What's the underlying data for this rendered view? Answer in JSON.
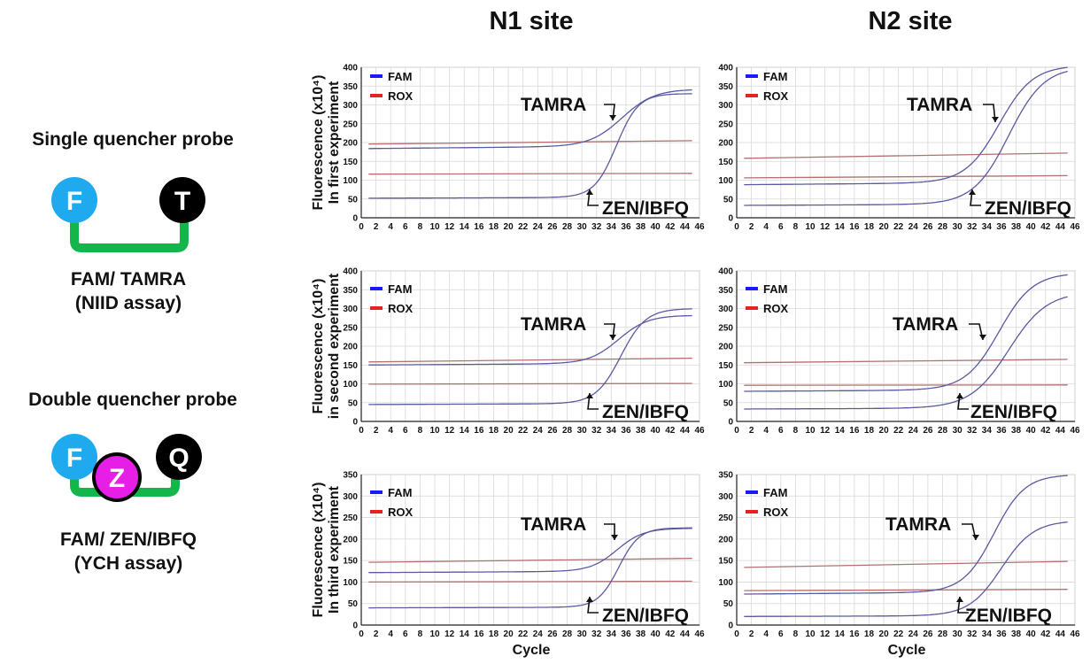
{
  "columns": [
    {
      "label": "N1 site"
    },
    {
      "label": "N2 site"
    }
  ],
  "probes": {
    "single": {
      "title": "Single quencher probe",
      "name_line1": "FAM/ TAMRA",
      "name_line2": "(NIID assay)",
      "circle_left": "F",
      "circle_right": "T"
    },
    "double": {
      "title": "Double quencher probe",
      "name_line1": "FAM/ ZEN/IBFQ",
      "name_line2": "(YCH assay)",
      "circle_left": "F",
      "circle_mid": "Z",
      "circle_right": "Q"
    }
  },
  "colors": {
    "fam": "#1a1aff",
    "rox": "#e52222",
    "fam_curve": "#5a5aa0",
    "rox_curve": "#b27070",
    "probe_f": "#1fa9ee",
    "probe_dark": "#000000",
    "probe_z": "#e61ee6",
    "linker": "#12b64a",
    "grid": "#d8d8d8"
  },
  "row_labels": [
    {
      "line1": "Fluorescence (x10⁴)",
      "line2": "In first experiment"
    },
    {
      "line1": "Fluorescence (x10⁴)",
      "line2": "in second experiment"
    },
    {
      "line1": "Fluorescence (x10⁴)",
      "line2": "In third experiment"
    }
  ],
  "xlabel": "Cycle",
  "chart_data": [
    {
      "type": "line",
      "panel": "N1 site / first experiment",
      "xlim": [
        0,
        46
      ],
      "ylim": [
        0,
        400
      ],
      "x_ticks": [
        0,
        2,
        4,
        6,
        8,
        10,
        12,
        14,
        16,
        18,
        20,
        22,
        24,
        26,
        28,
        30,
        32,
        34,
        36,
        38,
        40,
        42,
        44,
        46
      ],
      "y_ticks": [
        0,
        50,
        100,
        150,
        200,
        250,
        300,
        350,
        400
      ],
      "legend": [
        "FAM",
        "ROX"
      ],
      "annotations": [
        "TAMRA",
        "ZEN/IBFQ"
      ],
      "series": [
        {
          "kind": "rox",
          "values": {
            "x": [
              1,
              45
            ],
            "y": [
              196,
              205
            ]
          }
        },
        {
          "kind": "rox",
          "values": {
            "x": [
              1,
              45
            ],
            "y": [
              116,
              118
            ]
          }
        },
        {
          "kind": "fam",
          "sigmoid": {
            "base0": 184,
            "base1": 192,
            "plateau": 342,
            "mid": 35.5,
            "slope": 2.2
          }
        },
        {
          "kind": "fam",
          "sigmoid": {
            "base0": 52,
            "base1": 55,
            "plateau": 330,
            "mid": 34.7,
            "slope": 1.5
          }
        }
      ]
    },
    {
      "type": "line",
      "panel": "N2 site / first experiment",
      "xlim": [
        0,
        46
      ],
      "ylim": [
        0,
        400
      ],
      "x_ticks": [
        0,
        2,
        4,
        6,
        8,
        10,
        12,
        14,
        16,
        18,
        20,
        22,
        24,
        26,
        28,
        30,
        32,
        34,
        36,
        38,
        40,
        42,
        44,
        46
      ],
      "y_ticks": [
        0,
        50,
        100,
        150,
        200,
        250,
        300,
        350,
        400
      ],
      "legend": [
        "FAM",
        "ROX"
      ],
      "annotations": [
        "TAMRA",
        "ZEN/IBFQ"
      ],
      "series": [
        {
          "kind": "rox",
          "values": {
            "x": [
              1,
              45
            ],
            "y": [
              158,
              172
            ]
          }
        },
        {
          "kind": "rox",
          "values": {
            "x": [
              1,
              45
            ],
            "y": [
              106,
              112
            ]
          }
        },
        {
          "kind": "fam",
          "sigmoid": {
            "base0": 88,
            "base1": 95,
            "plateau": 405,
            "mid": 35.7,
            "slope": 2.3
          }
        },
        {
          "kind": "fam",
          "sigmoid": {
            "base0": 33,
            "base1": 37,
            "plateau": 402,
            "mid": 37.0,
            "slope": 2.4
          }
        }
      ]
    },
    {
      "type": "line",
      "panel": "N1 site / second experiment",
      "xlim": [
        0,
        46
      ],
      "ylim": [
        0,
        400
      ],
      "x_ticks": [
        0,
        2,
        4,
        6,
        8,
        10,
        12,
        14,
        16,
        18,
        20,
        22,
        24,
        26,
        28,
        30,
        32,
        34,
        36,
        38,
        40,
        42,
        44,
        46
      ],
      "y_ticks": [
        0,
        50,
        100,
        150,
        200,
        250,
        300,
        350,
        400
      ],
      "legend": [
        "FAM",
        "ROX"
      ],
      "annotations": [
        "TAMRA",
        "ZEN/IBFQ"
      ],
      "series": [
        {
          "kind": "rox",
          "values": {
            "x": [
              1,
              45
            ],
            "y": [
              158,
              168
            ]
          }
        },
        {
          "kind": "rox",
          "values": {
            "x": [
              1,
              45
            ],
            "y": [
              99,
              101
            ]
          }
        },
        {
          "kind": "fam",
          "sigmoid": {
            "base0": 150,
            "base1": 155,
            "plateau": 282,
            "mid": 35.0,
            "slope": 2.0
          }
        },
        {
          "kind": "fam",
          "sigmoid": {
            "base0": 45,
            "base1": 48,
            "plateau": 300,
            "mid": 35.3,
            "slope": 1.7
          }
        }
      ]
    },
    {
      "type": "line",
      "panel": "N2 site / second experiment",
      "xlim": [
        0,
        46
      ],
      "ylim": [
        0,
        400
      ],
      "x_ticks": [
        0,
        2,
        4,
        6,
        8,
        10,
        12,
        14,
        16,
        18,
        20,
        22,
        24,
        26,
        28,
        30,
        32,
        34,
        36,
        38,
        40,
        42,
        44,
        46
      ],
      "y_ticks": [
        0,
        50,
        100,
        150,
        200,
        250,
        300,
        350,
        400
      ],
      "legend": [
        "FAM",
        "ROX"
      ],
      "annotations": [
        "TAMRA",
        "ZEN/IBFQ"
      ],
      "series": [
        {
          "kind": "rox",
          "values": {
            "x": [
              1,
              45
            ],
            "y": [
              156,
              165
            ]
          }
        },
        {
          "kind": "rox",
          "values": {
            "x": [
              1,
              45
            ],
            "y": [
              96,
              97
            ]
          }
        },
        {
          "kind": "fam",
          "sigmoid": {
            "base0": 80,
            "base1": 85,
            "plateau": 395,
            "mid": 35.7,
            "slope": 2.3
          }
        },
        {
          "kind": "fam",
          "sigmoid": {
            "base0": 33,
            "base1": 36,
            "plateau": 345,
            "mid": 37.0,
            "slope": 2.6
          }
        }
      ]
    },
    {
      "type": "line",
      "panel": "N1 site / third experiment",
      "xlim": [
        0,
        46
      ],
      "ylim": [
        0,
        350
      ],
      "x_ticks": [
        0,
        2,
        4,
        6,
        8,
        10,
        12,
        14,
        16,
        18,
        20,
        22,
        24,
        26,
        28,
        30,
        32,
        34,
        36,
        38,
        40,
        42,
        44,
        46
      ],
      "y_ticks": [
        0,
        50,
        100,
        150,
        200,
        250,
        300,
        350
      ],
      "legend": [
        "FAM",
        "ROX"
      ],
      "annotations": [
        "TAMRA",
        "ZEN/IBFQ"
      ],
      "series": [
        {
          "kind": "rox",
          "values": {
            "x": [
              1,
              45
            ],
            "y": [
              146,
              155
            ]
          }
        },
        {
          "kind": "rox",
          "values": {
            "x": [
              1,
              45
            ],
            "y": [
              100,
              102
            ]
          }
        },
        {
          "kind": "fam",
          "sigmoid": {
            "base0": 122,
            "base1": 126,
            "plateau": 225,
            "mid": 34.8,
            "slope": 1.8
          }
        },
        {
          "kind": "fam",
          "sigmoid": {
            "base0": 40,
            "base1": 42,
            "plateau": 226,
            "mid": 35.0,
            "slope": 1.4
          }
        }
      ]
    },
    {
      "type": "line",
      "panel": "N2 site / third experiment",
      "xlim": [
        0,
        46
      ],
      "ylim": [
        0,
        350
      ],
      "x_ticks": [
        0,
        2,
        4,
        6,
        8,
        10,
        12,
        14,
        16,
        18,
        20,
        22,
        24,
        26,
        28,
        30,
        32,
        34,
        36,
        38,
        40,
        42,
        44,
        46
      ],
      "y_ticks": [
        0,
        50,
        100,
        150,
        200,
        250,
        300,
        350
      ],
      "legend": [
        "FAM",
        "ROX"
      ],
      "annotations": [
        "TAMRA",
        "ZEN/IBFQ"
      ],
      "series": [
        {
          "kind": "rox",
          "values": {
            "x": [
              1,
              45
            ],
            "y": [
              134,
              148
            ]
          }
        },
        {
          "kind": "rox",
          "values": {
            "x": [
              1,
              45
            ],
            "y": [
              80,
              83
            ]
          }
        },
        {
          "kind": "fam",
          "sigmoid": {
            "base0": 72,
            "base1": 78,
            "plateau": 350,
            "mid": 35.0,
            "slope": 2.1
          }
        },
        {
          "kind": "fam",
          "sigmoid": {
            "base0": 20,
            "base1": 22,
            "plateau": 243,
            "mid": 36.0,
            "slope": 2.2
          }
        }
      ]
    }
  ]
}
